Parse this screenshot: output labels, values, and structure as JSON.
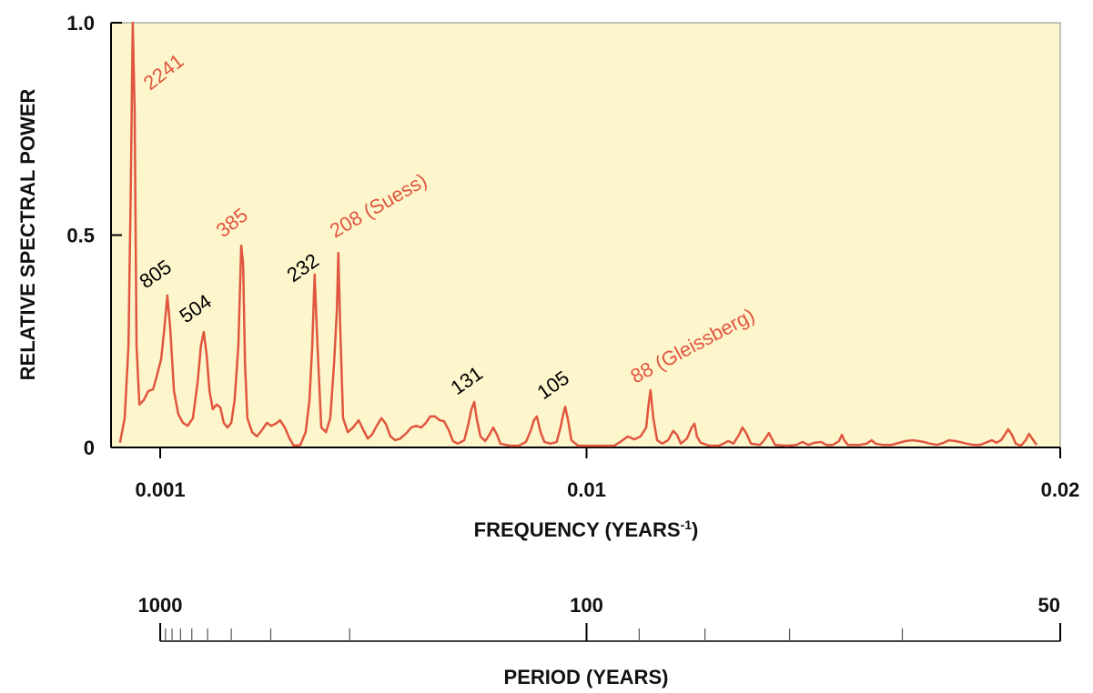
{
  "chart_data": {
    "type": "line",
    "ylabel": "RELATIVE SPECTRAL POWER",
    "xlabel": {
      "main": "FREQUENCY (YEARS",
      "sup": "-1",
      "end": ")"
    },
    "xlim": [
      0,
      0.02
    ],
    "xticks": [
      0.001,
      0.01,
      0.02
    ],
    "ylim": [
      0,
      1
    ],
    "yticks": [
      0,
      0.5,
      {
        "value": 1,
        "label": "1.0"
      }
    ],
    "background": "#fdf6cc",
    "x": [
      0.00015,
      0.00025,
      0.00033,
      0.00038,
      0.00042,
      0.00046,
      0.0005,
      0.00056,
      0.00065,
      0.00075,
      0.00085,
      0.00092,
      0.00102,
      0.00109,
      0.00115,
      0.00121,
      0.00129,
      0.00138,
      0.00148,
      0.00158,
      0.00169,
      0.00179,
      0.00186,
      0.00192,
      0.00198,
      0.00204,
      0.00211,
      0.00219,
      0.00227,
      0.00234,
      0.00242,
      0.0025,
      0.00257,
      0.00265,
      0.00271,
      0.00275,
      0.00279,
      0.00284,
      0.00294,
      0.00304,
      0.00315,
      0.00325,
      0.00334,
      0.00344,
      0.00353,
      0.00363,
      0.00373,
      0.00382,
      0.00396,
      0.00407,
      0.00415,
      0.00421,
      0.00426,
      0.00432,
      0.0044,
      0.0045,
      0.00459,
      0.00467,
      0.00473,
      0.00476,
      0.0048,
      0.00486,
      0.00496,
      0.00507,
      0.00519,
      0.00528,
      0.00538,
      0.00547,
      0.00557,
      0.00567,
      0.00576,
      0.00586,
      0.00596,
      0.00607,
      0.0062,
      0.0063,
      0.0064,
      0.00651,
      0.00661,
      0.0067,
      0.0068,
      0.0069,
      0.00699,
      0.00709,
      0.00718,
      0.00728,
      0.00742,
      0.00751,
      0.00757,
      0.00763,
      0.00768,
      0.00776,
      0.00786,
      0.00795,
      0.00803,
      0.00811,
      0.00818,
      0.00838,
      0.00857,
      0.00872,
      0.00882,
      0.00889,
      0.00895,
      0.00903,
      0.00911,
      0.00924,
      0.00937,
      0.00945,
      0.00951,
      0.00955,
      0.00961,
      0.00968,
      0.00982,
      0.01001,
      0.0103,
      0.01058,
      0.01074,
      0.01087,
      0.01101,
      0.01114,
      0.01126,
      0.01131,
      0.01135,
      0.01141,
      0.01149,
      0.0116,
      0.01172,
      0.01183,
      0.01191,
      0.01199,
      0.01212,
      0.01222,
      0.01228,
      0.01233,
      0.01241,
      0.0126,
      0.01279,
      0.01289,
      0.01299,
      0.0131,
      0.01322,
      0.01329,
      0.01337,
      0.01347,
      0.01366,
      0.01375,
      0.01385,
      0.01391,
      0.01398,
      0.01423,
      0.01443,
      0.01456,
      0.01468,
      0.01481,
      0.01495,
      0.01506,
      0.0152,
      0.01533,
      0.01539,
      0.01544,
      0.01552,
      0.01577,
      0.01591,
      0.01602,
      0.0161,
      0.01625,
      0.01644,
      0.0166,
      0.01673,
      0.01689,
      0.01702,
      0.01712,
      0.01725,
      0.0174,
      0.01754,
      0.01765,
      0.01779,
      0.01788,
      0.01802,
      0.01817,
      0.01831,
      0.01842,
      0.01856,
      0.01865,
      0.01875,
      0.01883,
      0.0189,
      0.01898,
      0.01906,
      0.01917,
      0.01927,
      0.01934,
      0.01942,
      0.0195
    ],
    "series": [
      {
        "color": "#e0563f",
        "values": [
          0.011,
          0.069,
          0.24,
          0.625,
          1.0,
          0.797,
          0.24,
          0.101,
          0.111,
          0.133,
          0.137,
          0.165,
          0.208,
          0.283,
          0.358,
          0.283,
          0.133,
          0.079,
          0.058,
          0.051,
          0.069,
          0.154,
          0.24,
          0.272,
          0.218,
          0.133,
          0.09,
          0.101,
          0.094,
          0.058,
          0.047,
          0.058,
          0.111,
          0.24,
          0.475,
          0.433,
          0.197,
          0.069,
          0.036,
          0.026,
          0.041,
          0.058,
          0.051,
          0.056,
          0.064,
          0.047,
          0.021,
          0.004,
          0.006,
          0.036,
          0.111,
          0.24,
          0.407,
          0.24,
          0.047,
          0.036,
          0.069,
          0.197,
          0.325,
          0.458,
          0.283,
          0.069,
          0.036,
          0.047,
          0.064,
          0.043,
          0.021,
          0.03,
          0.051,
          0.069,
          0.056,
          0.026,
          0.017,
          0.021,
          0.034,
          0.047,
          0.051,
          0.047,
          0.058,
          0.073,
          0.073,
          0.064,
          0.062,
          0.041,
          0.015,
          0.009,
          0.017,
          0.058,
          0.09,
          0.107,
          0.069,
          0.026,
          0.015,
          0.03,
          0.047,
          0.03,
          0.009,
          0.004,
          0.004,
          0.013,
          0.039,
          0.064,
          0.073,
          0.036,
          0.013,
          0.009,
          0.013,
          0.047,
          0.079,
          0.096,
          0.064,
          0.017,
          0.004,
          0.004,
          0.004,
          0.004,
          0.015,
          0.026,
          0.019,
          0.026,
          0.047,
          0.101,
          0.135,
          0.069,
          0.017,
          0.009,
          0.017,
          0.039,
          0.03,
          0.009,
          0.021,
          0.047,
          0.056,
          0.026,
          0.011,
          0.004,
          0.004,
          0.009,
          0.015,
          0.009,
          0.03,
          0.047,
          0.034,
          0.009,
          0.006,
          0.017,
          0.034,
          0.021,
          0.006,
          0.004,
          0.006,
          0.013,
          0.006,
          0.011,
          0.013,
          0.006,
          0.006,
          0.015,
          0.03,
          0.017,
          0.006,
          0.006,
          0.009,
          0.017,
          0.009,
          0.006,
          0.006,
          0.011,
          0.015,
          0.017,
          0.015,
          0.013,
          0.009,
          0.006,
          0.011,
          0.017,
          0.015,
          0.013,
          0.009,
          0.006,
          0.006,
          0.011,
          0.017,
          0.011,
          0.017,
          0.03,
          0.043,
          0.03,
          0.009,
          0.004,
          0.017,
          0.032,
          0.019,
          0.006
        ]
      }
    ],
    "annotations": [
      {
        "text": "2241",
        "color": "#e0563f"
      },
      {
        "text": "805",
        "color": "#000000"
      },
      {
        "text": "504",
        "color": "#000000"
      },
      {
        "text": "385",
        "color": "#e0563f"
      },
      {
        "text": "232",
        "color": "#000000"
      },
      {
        "text": "208 (Suess)",
        "color": "#e0563f"
      },
      {
        "text": "131",
        "color": "#000000"
      },
      {
        "text": "105",
        "color": "#000000"
      },
      {
        "text": "88 (Gleissberg)",
        "color": "#e0563f"
      }
    ],
    "period_axis": {
      "label": "PERIOD (YEARS)",
      "major_ticks": [
        1000,
        100,
        50
      ],
      "minor_ticks": [
        900,
        800,
        700,
        600,
        500,
        400,
        300,
        200,
        90,
        80,
        70,
        60
      ]
    }
  }
}
